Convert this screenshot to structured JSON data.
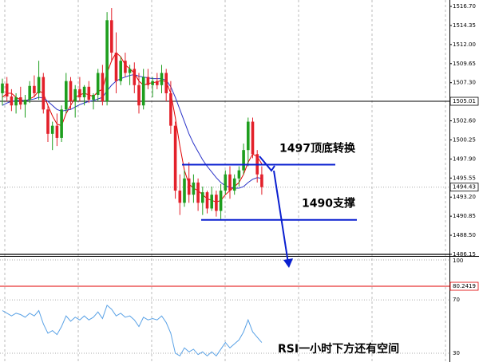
{
  "chart_data": [
    {
      "type": "candlestick",
      "ylim": [
        1485.95,
        1517.49
      ],
      "yticks": [
        {
          "value": 1516.7,
          "label": "1516.70"
        },
        1514.35,
        {
          "value": 1512,
          "label": "1512.00"
        },
        1509.65,
        {
          "value": 1507.3,
          "label": "1507.30"
        },
        {
          "value": 1502.6,
          "label": "1502.60"
        },
        1500.25,
        {
          "value": 1497.9,
          "label": "1497.90"
        },
        1495.55,
        {
          "value": 1493.2,
          "label": "1493.20"
        },
        1490.85,
        {
          "value": 1488.5,
          "label": "1488.50"
        },
        1486.15
      ],
      "marked_levels": [
        {
          "value": 1505.01,
          "label": "1505.01",
          "color": "#000000",
          "style": "solid"
        },
        {
          "value": 1494.43,
          "label": "1494.43",
          "color": "#aaaaaa",
          "style": "dotted"
        }
      ],
      "floor_line": {
        "value": 1486.15,
        "color": "#000000"
      },
      "up_color": "#1e9e1e",
      "down_color": "#e3202a",
      "candles": [
        [
          1506.0,
          1507.8,
          1504.5,
          1507.2
        ],
        [
          1507.2,
          1508.0,
          1505.0,
          1505.6
        ],
        [
          1505.6,
          1506.5,
          1503.8,
          1504.5
        ],
        [
          1504.5,
          1506.0,
          1503.5,
          1505.5
        ],
        [
          1505.5,
          1506.8,
          1504.0,
          1504.6
        ],
        [
          1504.6,
          1505.8,
          1503.0,
          1505.2
        ],
        [
          1505.2,
          1507.5,
          1504.8,
          1506.9
        ],
        [
          1506.9,
          1508.2,
          1505.5,
          1506.0
        ],
        [
          1506.0,
          1510.0,
          1505.2,
          1508.0
        ],
        [
          1508.0,
          1508.5,
          1503.5,
          1504.0
        ],
        [
          1504.0,
          1504.5,
          1500.0,
          1501.0
        ],
        [
          1501.0,
          1502.5,
          1499.0,
          1502.0
        ],
        [
          1502.0,
          1503.5,
          1499.5,
          1500.5
        ],
        [
          1500.5,
          1504.5,
          1500.0,
          1504.0
        ],
        [
          1504.0,
          1508.5,
          1503.5,
          1507.5
        ],
        [
          1507.5,
          1508.0,
          1504.0,
          1505.0
        ],
        [
          1505.0,
          1507.0,
          1503.0,
          1506.5
        ],
        [
          1506.5,
          1508.0,
          1505.0,
          1505.5
        ],
        [
          1505.5,
          1507.0,
          1504.5,
          1506.8
        ],
        [
          1506.8,
          1507.5,
          1504.8,
          1505.2
        ],
        [
          1505.2,
          1506.0,
          1504.0,
          1505.8
        ],
        [
          1505.8,
          1509.0,
          1505.0,
          1508.5
        ],
        [
          1508.5,
          1509.5,
          1504.5,
          1505.0
        ],
        [
          1505.0,
          1516.0,
          1504.5,
          1515.0
        ],
        [
          1515.0,
          1516.5,
          1510.0,
          1511.0
        ],
        [
          1511.0,
          1513.5,
          1506.0,
          1507.5
        ],
        [
          1507.5,
          1510.5,
          1507.0,
          1510.0
        ],
        [
          1510.0,
          1511.0,
          1508.0,
          1508.5
        ],
        [
          1508.5,
          1509.5,
          1507.0,
          1509.0
        ],
        [
          1509.0,
          1509.8,
          1506.0,
          1507.0
        ],
        [
          1507.0,
          1508.5,
          1503.5,
          1504.5
        ],
        [
          1504.5,
          1509.0,
          1504.0,
          1508.0
        ],
        [
          1508.0,
          1509.0,
          1506.5,
          1507.0
        ],
        [
          1507.0,
          1508.0,
          1505.5,
          1507.5
        ],
        [
          1507.5,
          1508.5,
          1506.5,
          1507.0
        ],
        [
          1507.0,
          1509.5,
          1506.0,
          1508.5
        ],
        [
          1508.5,
          1509.0,
          1505.0,
          1506.0
        ],
        [
          1506.0,
          1507.5,
          1501.0,
          1502.0
        ],
        [
          1502.0,
          1502.5,
          1493.0,
          1494.0
        ],
        [
          1494.0,
          1496.0,
          1491.0,
          1492.5
        ],
        [
          1492.5,
          1496.5,
          1492.0,
          1495.5
        ],
        [
          1495.5,
          1497.5,
          1492.5,
          1493.5
        ],
        [
          1493.5,
          1496.0,
          1492.5,
          1495.0
        ],
        [
          1495.0,
          1495.5,
          1491.5,
          1492.5
        ],
        [
          1492.5,
          1494.5,
          1491.0,
          1493.8
        ],
        [
          1493.8,
          1494.0,
          1491.2,
          1491.8
        ],
        [
          1491.8,
          1494.5,
          1491.5,
          1493.5
        ],
        [
          1493.5,
          1494.0,
          1490.8,
          1491.5
        ],
        [
          1491.5,
          1494.8,
          1490.5,
          1494.0
        ],
        [
          1494.0,
          1496.5,
          1493.5,
          1496.0
        ],
        [
          1496.0,
          1497.0,
          1493.0,
          1494.0
        ],
        [
          1494.0,
          1496.0,
          1493.5,
          1495.5
        ],
        [
          1495.5,
          1497.0,
          1494.5,
          1496.5
        ],
        [
          1496.5,
          1499.8,
          1496.0,
          1499.0
        ],
        [
          1499.0,
          1503.0,
          1497.0,
          1502.5
        ],
        [
          1502.5,
          1503.0,
          1498.0,
          1498.5
        ],
        [
          1498.5,
          1499.0,
          1495.0,
          1496.0
        ],
        [
          1496.0,
          1497.0,
          1493.5,
          1494.43
        ]
      ],
      "series": [
        {
          "color": "#e00000",
          "values": [
            1505.5,
            1506,
            1506,
            1505.5,
            1505.2,
            1505,
            1505.3,
            1505.6,
            1506.3,
            1506,
            1504.5,
            1503.2,
            1502.2,
            1502,
            1503.5,
            1504.5,
            1505.5,
            1505.8,
            1506,
            1505.8,
            1505.6,
            1506.2,
            1506.5,
            1508.5,
            1510,
            1511,
            1510.5,
            1509.5,
            1509,
            1508.5,
            1507.5,
            1507,
            1507.2,
            1507.3,
            1507.4,
            1507.6,
            1507.4,
            1506,
            1503,
            1499.5,
            1496.5,
            1494.8,
            1494.3,
            1494,
            1493.5,
            1493,
            1492.8,
            1492.6,
            1492.8,
            1493.5,
            1494,
            1494.5,
            1495,
            1496,
            1497.5,
            1498.5,
            1498.2,
            1497.3
          ]
        },
        {
          "color": "#2a33c8",
          "values": [
            1504.5,
            1504.8,
            1505,
            1505.1,
            1505.1,
            1505.1,
            1505.2,
            1505.3,
            1505.5,
            1505.4,
            1505,
            1504.5,
            1504,
            1503.8,
            1503.9,
            1504,
            1504.3,
            1504.6,
            1504.8,
            1505,
            1505.1,
            1505.3,
            1505.5,
            1506.3,
            1507,
            1507.5,
            1507.8,
            1508,
            1508.2,
            1508.3,
            1508.1,
            1508,
            1507.9,
            1507.8,
            1507.8,
            1507.8,
            1507.6,
            1506.8,
            1505.5,
            1504,
            1502.5,
            1501,
            1499.8,
            1498.8,
            1497.8,
            1497,
            1496.3,
            1495.6,
            1495,
            1494.6,
            1494.4,
            1494.3,
            1494.3,
            1494.5,
            1495,
            1495.4,
            1495.6,
            1495.5
          ]
        }
      ],
      "annotations": [
        {
          "value": 1497.2,
          "label": "1497顶底转换",
          "color": "#0a1fd0"
        },
        {
          "value": 1490.4,
          "label": "1490支撑",
          "color": "#0a1fd0"
        }
      ]
    },
    {
      "type": "line",
      "ylim": [
        23.4,
        102.4
      ],
      "yticks": [
        100,
        70,
        30
      ],
      "level": {
        "value": 80.2419,
        "label": "80.2419",
        "color": "#e00000"
      },
      "series": [
        {
          "color": "#5aa2e6",
          "values": [
            62,
            60,
            58,
            60,
            59,
            57,
            60,
            58,
            62,
            52,
            45,
            47,
            44,
            50,
            58,
            54,
            57,
            55,
            58,
            55,
            57,
            61,
            56,
            66,
            63,
            58,
            60,
            57,
            58,
            55,
            50,
            57,
            55,
            56,
            55,
            58,
            53,
            45,
            30,
            28,
            34,
            31,
            33,
            29,
            31,
            28,
            31,
            28,
            33,
            38,
            34,
            37,
            40,
            46,
            55,
            46,
            42,
            38
          ]
        }
      ],
      "annotation": "RSI一小时下方还有空间"
    }
  ]
}
